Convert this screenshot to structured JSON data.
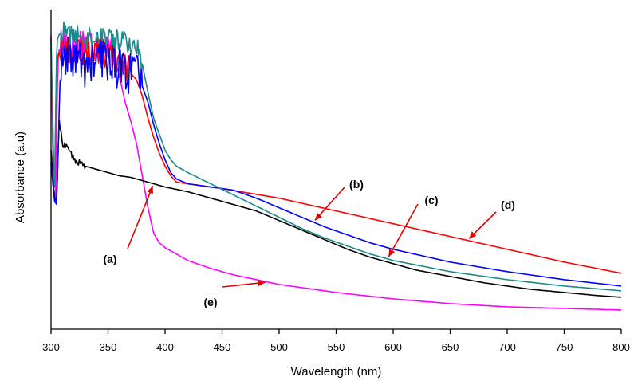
{
  "chart_data": {
    "type": "line",
    "title": "",
    "xlabel": "Wavelength (nm)",
    "ylabel": "Absorbance (a.u)",
    "xlim": [
      300,
      800
    ],
    "ylim": [
      0,
      1
    ],
    "x_ticks": [
      300,
      350,
      400,
      450,
      500,
      550,
      600,
      650,
      700,
      750,
      800
    ],
    "y_ticks": [],
    "grid": false,
    "legend": "none",
    "series": [
      {
        "name": "(a)",
        "color": "#000000",
        "x": [
          300,
          303,
          305,
          307,
          308,
          310,
          315,
          320,
          330,
          340,
          350,
          360,
          370,
          380,
          390,
          400,
          420,
          450,
          480,
          500,
          520,
          540,
          560,
          580,
          600,
          620,
          650,
          680,
          700,
          720,
          750,
          780,
          800
        ],
        "y": [
          0.56,
          0.41,
          0.4,
          0.66,
          0.63,
          0.58,
          0.57,
          0.53,
          0.51,
          0.5,
          0.49,
          0.48,
          0.475,
          0.465,
          0.455,
          0.445,
          0.43,
          0.4,
          0.37,
          0.34,
          0.31,
          0.28,
          0.25,
          0.225,
          0.205,
          0.185,
          0.165,
          0.145,
          0.135,
          0.125,
          0.115,
          0.105,
          0.1
        ],
        "noise_until": 330,
        "noise_amp": 0.01
      },
      {
        "name": "(b)",
        "color": "#0000ff",
        "x": [
          300,
          303,
          305,
          308,
          310,
          320,
          330,
          340,
          350,
          360,
          365,
          370,
          375,
          380,
          385,
          390,
          395,
          400,
          405,
          410,
          420,
          440,
          450,
          460,
          480,
          500,
          520,
          540,
          560,
          580,
          600,
          650,
          700,
          750,
          800
        ],
        "y": [
          0.52,
          0.4,
          0.39,
          0.8,
          0.82,
          0.86,
          0.82,
          0.84,
          0.85,
          0.82,
          0.82,
          0.79,
          0.82,
          0.76,
          0.71,
          0.64,
          0.58,
          0.53,
          0.49,
          0.47,
          0.455,
          0.445,
          0.44,
          0.435,
          0.41,
          0.38,
          0.35,
          0.32,
          0.295,
          0.27,
          0.25,
          0.21,
          0.18,
          0.155,
          0.135
        ],
        "noise_until": 380,
        "noise_amp": 0.075
      },
      {
        "name": "(c)",
        "color": "#1a8a8a",
        "x": [
          300,
          303,
          305,
          308,
          310,
          320,
          330,
          340,
          350,
          360,
          365,
          370,
          375,
          380,
          385,
          390,
          395,
          400,
          405,
          410,
          420,
          440,
          460,
          480,
          500,
          520,
          540,
          560,
          580,
          600,
          650,
          700,
          750,
          800
        ],
        "y": [
          0.91,
          0.4,
          0.9,
          0.93,
          0.93,
          0.92,
          0.91,
          0.92,
          0.92,
          0.9,
          0.91,
          0.88,
          0.89,
          0.83,
          0.74,
          0.66,
          0.61,
          0.56,
          0.53,
          0.51,
          0.49,
          0.455,
          0.42,
          0.385,
          0.35,
          0.315,
          0.285,
          0.26,
          0.235,
          0.215,
          0.18,
          0.155,
          0.135,
          0.12
        ],
        "noise_until": 380,
        "noise_amp": 0.035
      },
      {
        "name": "(d)",
        "color": "#ff0000",
        "x": [
          300,
          303,
          305,
          308,
          310,
          320,
          330,
          340,
          350,
          360,
          365,
          370,
          375,
          380,
          385,
          390,
          395,
          400,
          405,
          410,
          420,
          450,
          500,
          550,
          600,
          650,
          700,
          750,
          800
        ],
        "y": [
          0.88,
          0.4,
          0.85,
          0.87,
          0.88,
          0.86,
          0.88,
          0.87,
          0.86,
          0.85,
          0.84,
          0.8,
          0.78,
          0.73,
          0.66,
          0.6,
          0.55,
          0.51,
          0.48,
          0.46,
          0.455,
          0.44,
          0.41,
          0.37,
          0.33,
          0.29,
          0.25,
          0.21,
          0.175
        ],
        "noise_until": 370,
        "noise_amp": 0.05
      },
      {
        "name": "(e)",
        "color": "#ff00ff",
        "x": [
          300,
          302,
          304,
          306,
          308,
          310,
          320,
          330,
          340,
          350,
          355,
          360,
          365,
          370,
          375,
          380,
          385,
          390,
          395,
          400,
          410,
          420,
          440,
          460,
          500,
          550,
          600,
          650,
          700,
          750,
          800
        ],
        "y": [
          0.92,
          0.45,
          0.4,
          0.85,
          0.89,
          0.9,
          0.89,
          0.9,
          0.89,
          0.88,
          0.86,
          0.79,
          0.71,
          0.65,
          0.58,
          0.48,
          0.38,
          0.3,
          0.27,
          0.255,
          0.235,
          0.215,
          0.19,
          0.17,
          0.14,
          0.115,
          0.095,
          0.08,
          0.07,
          0.065,
          0.06
        ],
        "noise_until": 355,
        "noise_amp": 0.06
      }
    ],
    "annotations": [
      {
        "text": "(a)",
        "series": "(a)",
        "at_x": 390
      },
      {
        "text": "(b)",
        "series": "(b)",
        "at_x": 530
      },
      {
        "text": "(c)",
        "series": "(c)",
        "at_x": 595
      },
      {
        "text": "(d)",
        "series": "(d)",
        "at_x": 665
      },
      {
        "text": "(e)",
        "series": "(e)",
        "at_x": 490
      }
    ]
  }
}
